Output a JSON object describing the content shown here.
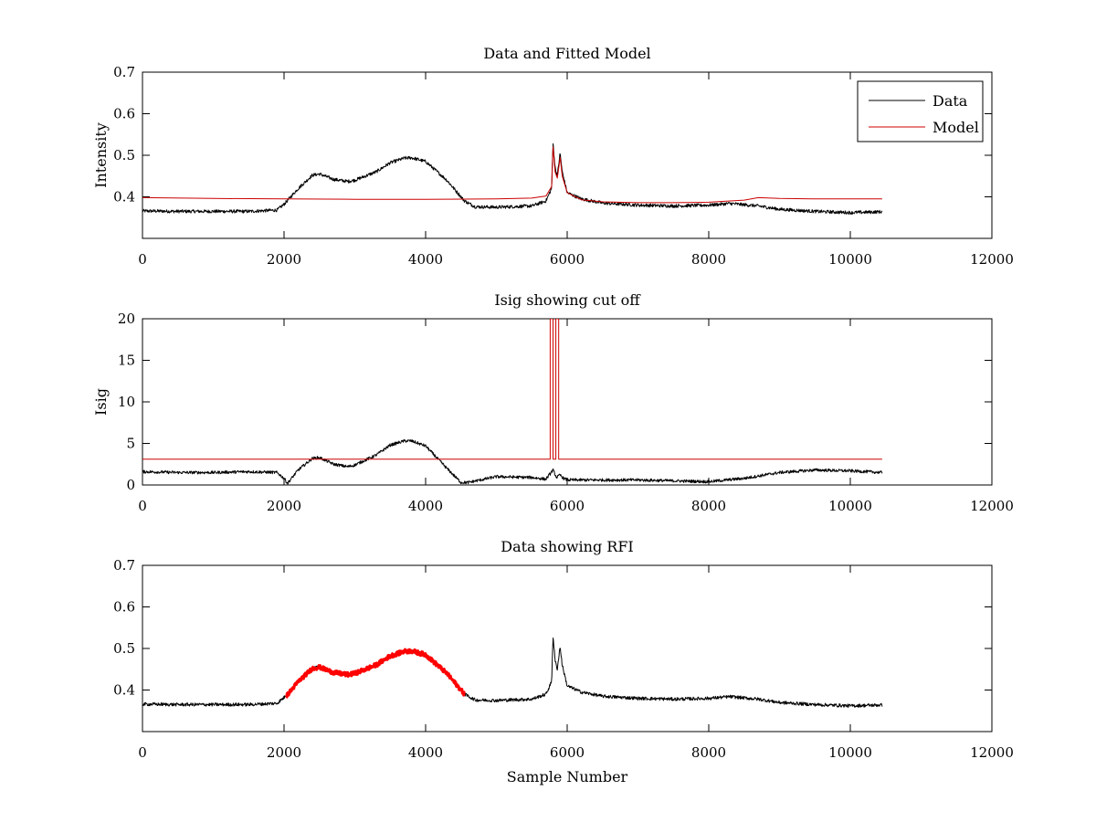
{
  "chart_data": [
    {
      "type": "line",
      "title": "Data and Fitted Model",
      "xlabel": "",
      "ylabel": "Intensity",
      "xlim": [
        0,
        12000
      ],
      "ylim": [
        0.3,
        0.7
      ],
      "xticks": [
        0,
        2000,
        4000,
        6000,
        8000,
        10000,
        12000
      ],
      "yticks": [
        0.4,
        0.5,
        0.6,
        0.7
      ],
      "grid": false,
      "legend": "top-right",
      "series": [
        {
          "name": "Data",
          "color": "#000000",
          "noise": 0.004,
          "x": [
            0,
            500,
            1000,
            1500,
            1900,
            2000,
            2200,
            2400,
            2500,
            2700,
            2900,
            3000,
            3300,
            3500,
            3700,
            3800,
            4000,
            4300,
            4550,
            4700,
            5000,
            5500,
            5700,
            5780,
            5800,
            5830,
            5860,
            5900,
            5930,
            6000,
            6200,
            6500,
            7000,
            7500,
            8000,
            8300,
            8700,
            9000,
            9500,
            10000,
            10450
          ],
          "y": [
            0.366,
            0.365,
            0.365,
            0.365,
            0.368,
            0.382,
            0.42,
            0.452,
            0.455,
            0.442,
            0.437,
            0.44,
            0.46,
            0.482,
            0.493,
            0.494,
            0.485,
            0.44,
            0.39,
            0.376,
            0.375,
            0.378,
            0.39,
            0.42,
            0.53,
            0.47,
            0.45,
            0.505,
            0.46,
            0.41,
            0.395,
            0.385,
            0.38,
            0.378,
            0.38,
            0.384,
            0.378,
            0.37,
            0.365,
            0.362,
            0.364
          ]
        },
        {
          "name": "Model",
          "color": "#cc0000",
          "noise": 0,
          "x": [
            0,
            1000,
            2000,
            3000,
            4000,
            5000,
            5500,
            5700,
            5780,
            5800,
            5830,
            5860,
            5900,
            5930,
            6000,
            6200,
            6500,
            7000,
            7500,
            8000,
            8500,
            8700,
            9000,
            9500,
            10000,
            10450
          ],
          "y": [
            0.398,
            0.396,
            0.395,
            0.394,
            0.394,
            0.395,
            0.397,
            0.402,
            0.425,
            0.52,
            0.46,
            0.445,
            0.495,
            0.45,
            0.41,
            0.393,
            0.388,
            0.386,
            0.386,
            0.387,
            0.392,
            0.398,
            0.396,
            0.395,
            0.395,
            0.395
          ]
        }
      ]
    },
    {
      "type": "line",
      "title": "Isig showing cut off",
      "xlabel": "",
      "ylabel": "Isig",
      "xlim": [
        0,
        12000
      ],
      "ylim": [
        0,
        20
      ],
      "xticks": [
        0,
        2000,
        4000,
        6000,
        8000,
        10000,
        12000
      ],
      "yticks": [
        0,
        5,
        10,
        15,
        20
      ],
      "grid": false,
      "series": [
        {
          "color": "#000000",
          "noise": 0.18,
          "x": [
            0,
            500,
            1000,
            1500,
            1900,
            2000,
            2050,
            2200,
            2400,
            2500,
            2700,
            2900,
            3000,
            3300,
            3500,
            3700,
            3800,
            4000,
            4300,
            4500,
            4600,
            5000,
            5500,
            5700,
            5800,
            5850,
            5900,
            5950,
            6000,
            6500,
            7000,
            7500,
            8000,
            8500,
            9000,
            9500,
            10000,
            10450
          ],
          "y": [
            1.6,
            1.5,
            1.5,
            1.6,
            1.5,
            0.8,
            0.2,
            1.8,
            3.2,
            3.3,
            2.5,
            2.2,
            2.4,
            3.6,
            4.8,
            5.3,
            5.3,
            4.7,
            2.0,
            0.3,
            0.3,
            1.0,
            0.9,
            0.7,
            1.8,
            0.9,
            1.2,
            0.8,
            0.6,
            0.6,
            0.6,
            0.5,
            0.4,
            0.8,
            1.5,
            1.8,
            1.7,
            1.5
          ]
        },
        {
          "color": "#cc0000",
          "noise": 0,
          "x": [
            0,
            5760,
            5760,
            5800,
            5800,
            5840,
            5840,
            5880,
            5880,
            5920,
            5920,
            10450
          ],
          "y": [
            3.1,
            3.1,
            20,
            20,
            3.1,
            3.1,
            20,
            20,
            3.1,
            3.1,
            3.1,
            3.1
          ]
        }
      ]
    },
    {
      "type": "line",
      "title": "Data showing RFI",
      "xlabel": "Sample Number",
      "ylabel": "",
      "xlim": [
        0,
        12000
      ],
      "ylim": [
        0.3,
        0.7
      ],
      "xticks": [
        0,
        2000,
        4000,
        6000,
        8000,
        10000,
        12000
      ],
      "yticks": [
        0.4,
        0.5,
        0.6,
        0.7
      ],
      "grid": false,
      "series": [
        {
          "color": "#000000",
          "noise": 0.004,
          "x": [
            0,
            500,
            1000,
            1500,
            1900,
            2000,
            2200,
            2400,
            2500,
            2700,
            2900,
            3000,
            3300,
            3500,
            3700,
            3800,
            4000,
            4300,
            4550,
            4700,
            5000,
            5500,
            5700,
            5780,
            5800,
            5830,
            5860,
            5900,
            5930,
            6000,
            6200,
            6500,
            7000,
            7500,
            8000,
            8300,
            8700,
            9000,
            9500,
            10000,
            10450
          ],
          "y": [
            0.366,
            0.365,
            0.365,
            0.365,
            0.368,
            0.382,
            0.42,
            0.452,
            0.455,
            0.442,
            0.437,
            0.44,
            0.46,
            0.482,
            0.493,
            0.494,
            0.485,
            0.44,
            0.39,
            0.376,
            0.375,
            0.378,
            0.39,
            0.42,
            0.53,
            0.47,
            0.45,
            0.505,
            0.46,
            0.41,
            0.395,
            0.385,
            0.38,
            0.378,
            0.38,
            0.384,
            0.378,
            0.37,
            0.365,
            0.362,
            0.364
          ]
        },
        {
          "color": "#ff0000",
          "noise": 0.005,
          "thick": true,
          "x": [
            2030,
            2200,
            2400,
            2500,
            2700,
            2900,
            3000,
            3300,
            3500,
            3700,
            3800,
            4000,
            4300,
            4550
          ],
          "y": [
            0.385,
            0.42,
            0.452,
            0.455,
            0.442,
            0.437,
            0.44,
            0.46,
            0.482,
            0.493,
            0.494,
            0.485,
            0.44,
            0.39
          ]
        }
      ]
    }
  ]
}
